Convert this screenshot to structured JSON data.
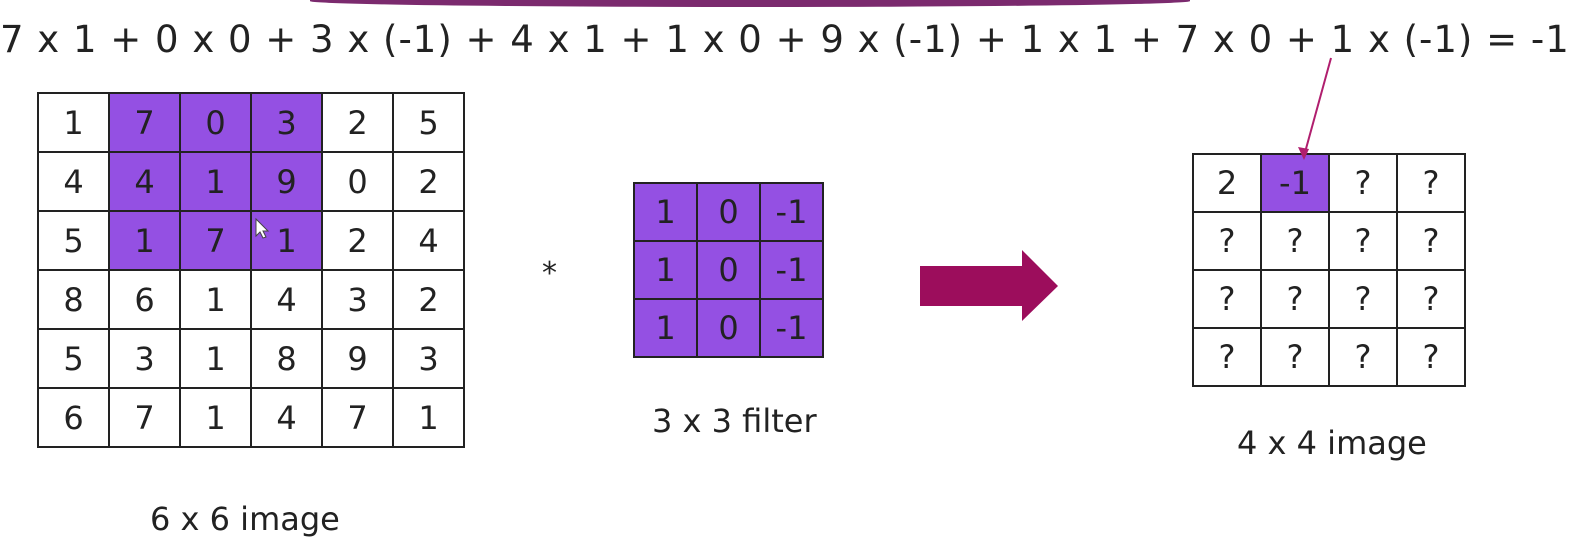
{
  "equation": "7 x 1 + 0 x 0 + 3 x (-1) + 4 x 1 + 1 x 0 + 9 x (-1) + 1 x 1 + 7 x 0 + 1 x (-1) = -1",
  "convolution_operator": "*",
  "input_image": {
    "caption": "6 x 6 image",
    "rows": [
      [
        "1",
        "7",
        "0",
        "3",
        "2",
        "5"
      ],
      [
        "4",
        "4",
        "1",
        "9",
        "0",
        "2"
      ],
      [
        "5",
        "1",
        "7",
        "1",
        "2",
        "4"
      ],
      [
        "8",
        "6",
        "1",
        "4",
        "3",
        "2"
      ],
      [
        "5",
        "3",
        "1",
        "8",
        "9",
        "3"
      ],
      [
        "6",
        "7",
        "1",
        "4",
        "7",
        "1"
      ]
    ]
  },
  "filter": {
    "caption": "3 x 3 filter",
    "rows": [
      [
        "1",
        "0",
        "-1"
      ],
      [
        "1",
        "0",
        "-1"
      ],
      [
        "1",
        "0",
        "-1"
      ]
    ]
  },
  "output_image": {
    "caption": "4 x 4 image",
    "rows": [
      [
        "2",
        "-1",
        "?",
        "?"
      ],
      [
        "?",
        "?",
        "?",
        "?"
      ],
      [
        "?",
        "?",
        "?",
        "?"
      ],
      [
        "?",
        "?",
        "?",
        "?"
      ]
    ]
  },
  "colors": {
    "highlight": "#9450e3",
    "arrow": "#9c0d5c",
    "pointer_line": "#b01e6e",
    "top_band": "#7b2a6e"
  },
  "icons": [
    "right-arrow-icon",
    "mouse-cursor-icon"
  ]
}
